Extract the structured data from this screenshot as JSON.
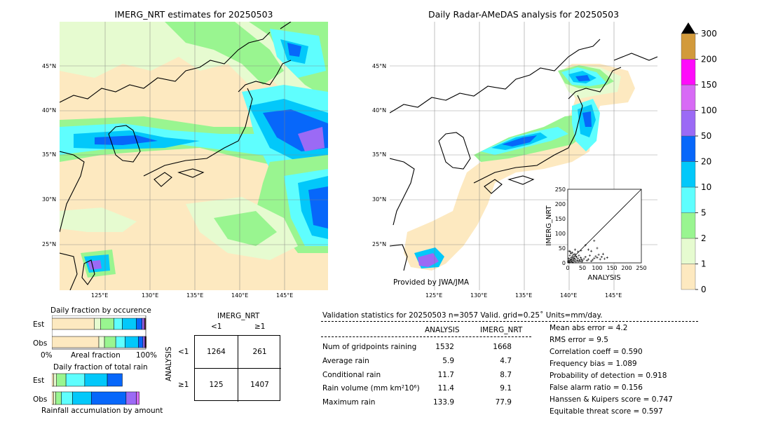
{
  "left_map": {
    "title": "IMERG_NRT estimates for 20250503",
    "lon_labels": [
      "125°E",
      "130°E",
      "135°E",
      "140°E",
      "145°E"
    ],
    "lat_labels": [
      "45°N",
      "40°N",
      "35°N",
      "30°N",
      "25°N"
    ]
  },
  "right_map": {
    "title": "Daily Radar-AMeDAS analysis for 20250503",
    "lon_labels": [
      "125°E",
      "130°E",
      "135°E",
      "140°E",
      "145°E"
    ],
    "lat_labels": [
      "45°N",
      "40°N",
      "35°N",
      "30°N",
      "25°N"
    ],
    "credit": "Provided by JWA/JMA"
  },
  "colorbar": {
    "ticks": [
      "0",
      "1",
      "2",
      "5",
      "10",
      "20",
      "50",
      "100",
      "150",
      "200",
      "300"
    ],
    "colors": [
      "#fde9c0",
      "#e6fbd0",
      "#99f590",
      "#5ffefe",
      "#02c8fa",
      "#0767fa",
      "#9b6af5",
      "#d76af5",
      "#fe0bfa",
      "#d29a3b"
    ]
  },
  "chart_data": [
    {
      "type": "scatter",
      "xlabel": "ANALYSIS",
      "ylabel": "IMERG_NRT",
      "xlim": [
        0,
        250
      ],
      "ylim": [
        0,
        250
      ],
      "x_ticks": [
        "0",
        "25",
        "50",
        "75",
        "100",
        "125",
        "150",
        "175",
        "200",
        "225",
        "250"
      ],
      "y_ticks": [
        "0",
        "25",
        "50",
        "75",
        "100",
        "125",
        "150",
        "175",
        "200",
        "225",
        "250"
      ],
      "points": [
        [
          2,
          3
        ],
        [
          4,
          8
        ],
        [
          6,
          2
        ],
        [
          8,
          12
        ],
        [
          10,
          5
        ],
        [
          12,
          18
        ],
        [
          14,
          4
        ],
        [
          16,
          22
        ],
        [
          18,
          9
        ],
        [
          20,
          14
        ],
        [
          22,
          6
        ],
        [
          24,
          30
        ],
        [
          26,
          11
        ],
        [
          28,
          3
        ],
        [
          30,
          20
        ],
        [
          32,
          8
        ],
        [
          34,
          15
        ],
        [
          36,
          5
        ],
        [
          38,
          25
        ],
        [
          40,
          10
        ],
        [
          42,
          6
        ],
        [
          44,
          18
        ],
        [
          46,
          12
        ],
        [
          48,
          4
        ],
        [
          50,
          9
        ],
        [
          55,
          14
        ],
        [
          60,
          20
        ],
        [
          65,
          8
        ],
        [
          70,
          12
        ],
        [
          75,
          25
        ],
        [
          80,
          6
        ],
        [
          85,
          10
        ],
        [
          90,
          16
        ],
        [
          95,
          22
        ],
        [
          100,
          18
        ],
        [
          105,
          28
        ],
        [
          110,
          12
        ],
        [
          115,
          20
        ],
        [
          120,
          30
        ],
        [
          125,
          14
        ],
        [
          100,
          50
        ],
        [
          80,
          40
        ],
        [
          90,
          75
        ],
        [
          60,
          60
        ],
        [
          70,
          45
        ],
        [
          5,
          40
        ],
        [
          15,
          35
        ],
        [
          25,
          45
        ],
        [
          35,
          38
        ],
        [
          45,
          42
        ],
        [
          133.9,
          18
        ],
        [
          3,
          15
        ],
        [
          7,
          25
        ],
        [
          11,
          32
        ],
        [
          19,
          28
        ],
        [
          27,
          22
        ],
        [
          9,
          38
        ],
        [
          13,
          10
        ],
        [
          17,
          2
        ],
        [
          23,
          16
        ]
      ],
      "diagonal": true
    },
    {
      "type": "bar",
      "title": "Daily fraction by occurence",
      "orientation": "horizontal-stacked",
      "categories": [
        "Est",
        "Obs"
      ],
      "xlabel": "Areal fraction",
      "x_tick_labels": [
        "0%",
        "100%"
      ],
      "series": [
        {
          "values": [
            0.45,
            0.5
          ]
        },
        {
          "values": [
            0.07,
            0.06
          ]
        },
        {
          "values": [
            0.14,
            0.12
          ]
        },
        {
          "values": [
            0.09,
            0.1
          ]
        },
        {
          "values": [
            0.15,
            0.14
          ]
        },
        {
          "values": [
            0.06,
            0.05
          ]
        },
        {
          "values": [
            0.02,
            0.02
          ]
        },
        {
          "values": [
            0.01,
            0.005
          ]
        },
        {
          "values": [
            0.005,
            0.005
          ]
        },
        {
          "values": [
            0.005,
            0.005
          ]
        }
      ]
    },
    {
      "type": "bar",
      "title": "Daily fraction of total rain",
      "orientation": "horizontal-stacked",
      "categories": [
        "Est",
        "Obs"
      ],
      "xlabel": "Rainfall accumulation by amount",
      "series": [
        {
          "values": [
            0.02,
            0.02
          ]
        },
        {
          "values": [
            0.03,
            0.02
          ]
        },
        {
          "values": [
            0.1,
            0.06
          ]
        },
        {
          "values": [
            0.2,
            0.12
          ]
        },
        {
          "values": [
            0.24,
            0.2
          ]
        },
        {
          "values": [
            0.16,
            0.37
          ]
        },
        {
          "values": [
            0.0,
            0.11
          ]
        },
        {
          "values": [
            0.0,
            0.03
          ]
        },
        {
          "values": [
            0.0,
            0.0
          ]
        },
        {
          "values": [
            0.0,
            0.0
          ]
        }
      ]
    },
    {
      "type": "table",
      "title": "IMERG_NRT",
      "col_headers": [
        "<1",
        "≥1"
      ],
      "row_label": "ANALYSIS",
      "row_headers": [
        "<1",
        "≥1"
      ],
      "cells": [
        [
          "1264",
          "261"
        ],
        [
          "125",
          "1407"
        ]
      ]
    }
  ],
  "validation": {
    "header": "Validation statistics for 20250503  n=3057 Valid. grid=0.25˚ Units=mm/day.",
    "col_analysis": "ANALYSIS",
    "col_imerg": "IMERG_NRT",
    "rows": [
      {
        "label": "Num of gridpoints raining",
        "analysis": "1532",
        "imerg": "1668"
      },
      {
        "label": "Average rain",
        "analysis": "5.9",
        "imerg": "4.7"
      },
      {
        "label": "Conditional rain",
        "analysis": "11.7",
        "imerg": "8.7"
      },
      {
        "label": "Rain volume (mm km²10⁶)",
        "analysis": "11.4",
        "imerg": "9.1"
      },
      {
        "label": "Maximum rain",
        "analysis": "133.9",
        "imerg": "77.9"
      }
    ],
    "scores": [
      "Mean abs error =    4.2",
      "RMS error =    9.5",
      "Correlation coeff =  0.590",
      "Frequency bias =  1.089",
      "Probability of detection =  0.918",
      "False alarm ratio =  0.156",
      "Hanssen & Kuipers score =  0.747",
      "Equitable threat score =  0.597"
    ]
  }
}
